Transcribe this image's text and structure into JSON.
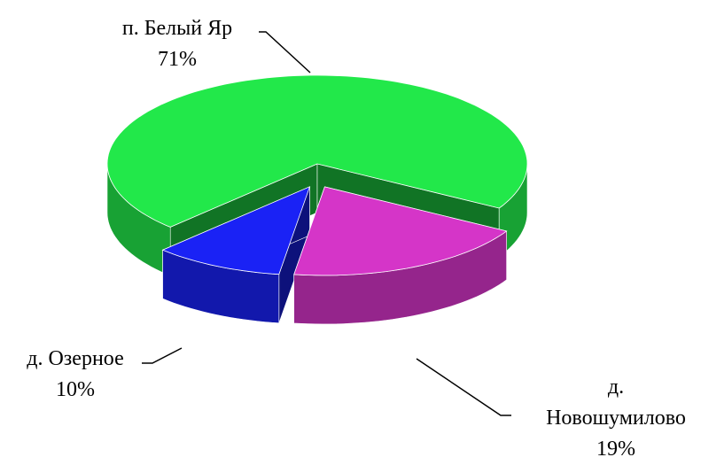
{
  "chart_data": {
    "type": "pie",
    "categories": [
      "п. Белый Яр",
      "д. Новошумилово",
      "д. Озерное"
    ],
    "values": [
      71,
      19,
      10
    ],
    "value_labels": [
      "71%",
      "19%",
      "10%"
    ],
    "colors": [
      "#22e84a",
      "#d535c8",
      "#1a22f5"
    ]
  }
}
